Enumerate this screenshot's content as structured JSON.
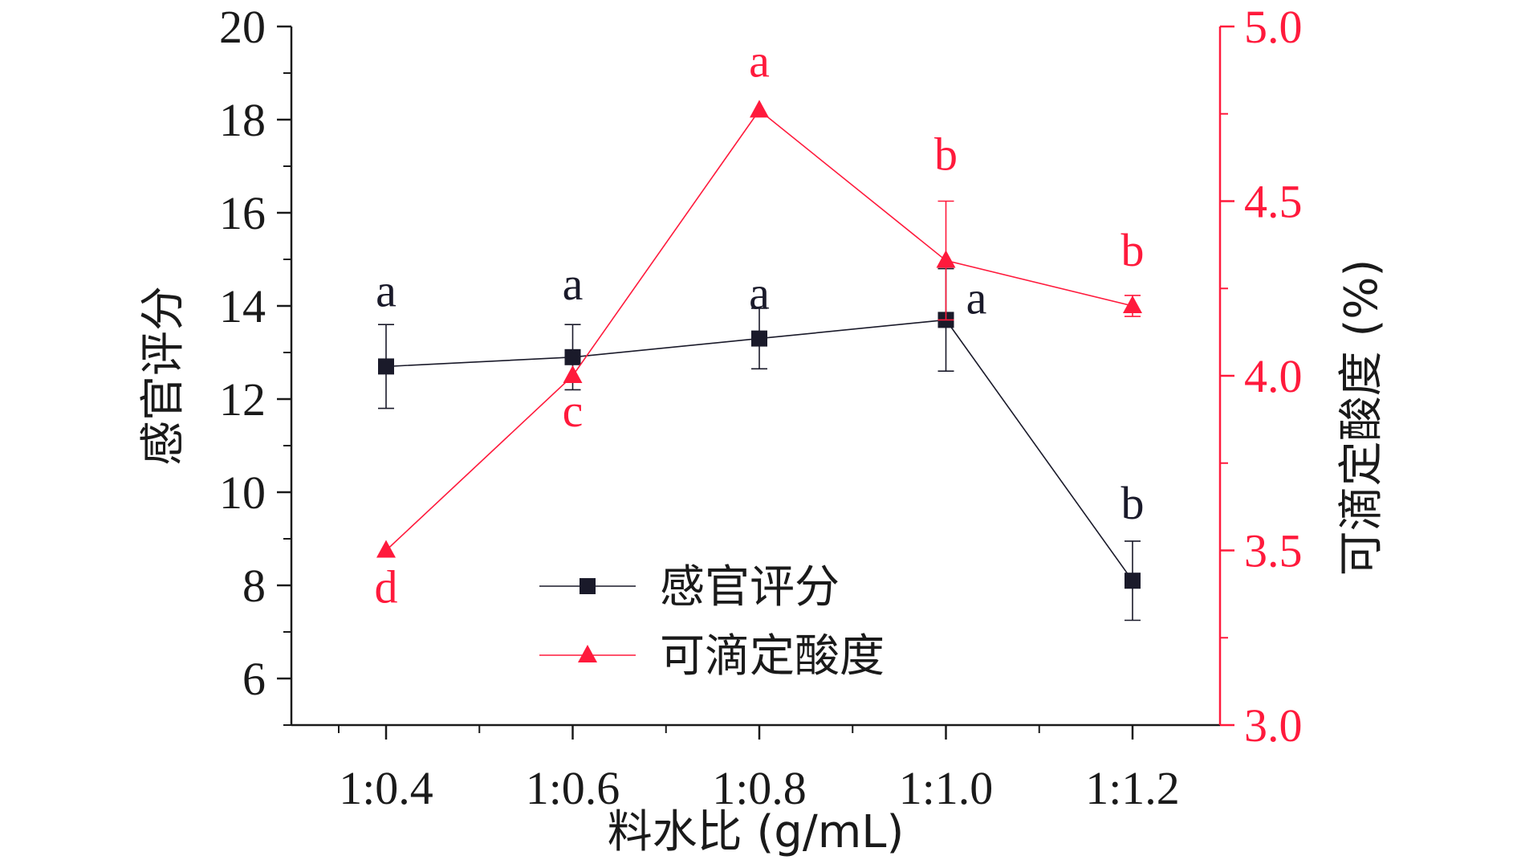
{
  "chart_data": {
    "type": "line",
    "xlabel": "料水比 (g/mL)",
    "categories": [
      "1:0.4",
      "1:0.6",
      "1:0.8",
      "1:1.0",
      "1:1.2"
    ],
    "y_left": {
      "label": "感官评分",
      "lim": [
        5,
        20
      ],
      "ticks": [
        6,
        8,
        10,
        12,
        14,
        16,
        18,
        20
      ],
      "tick_labels": [
        "6",
        "8",
        "10",
        "12",
        "14",
        "16",
        "18",
        "20"
      ]
    },
    "y_right": {
      "label": "可滴定酸度 (%)",
      "lim": [
        3.0,
        5.0
      ],
      "ticks": [
        3.0,
        3.5,
        4.0,
        4.5,
        5.0
      ],
      "tick_labels": [
        "3.0",
        "3.5",
        "4.0",
        "4.5",
        "5.0"
      ],
      "color": "#ff1a3c"
    },
    "series": [
      {
        "name": "感官评分",
        "axis": "left",
        "color": "#1a1a2a",
        "marker": "square",
        "values": [
          12.7,
          12.9,
          13.3,
          13.7,
          8.1
        ],
        "errors": [
          0.9,
          0.7,
          0.65,
          1.1,
          0.85
        ],
        "sig_labels": [
          "a",
          "a",
          "a",
          "a",
          "b"
        ]
      },
      {
        "name": "可滴定酸度",
        "axis": "right",
        "color": "#ff1a3c",
        "marker": "triangle",
        "values": [
          3.5,
          4.0,
          4.76,
          4.33,
          4.2
        ],
        "errors": [
          0.0,
          0.0,
          0.0,
          0.17,
          0.03
        ],
        "sig_labels": [
          "d",
          "c",
          "a",
          "b",
          "b"
        ]
      }
    ],
    "legend_position": "lower-center",
    "grid": false
  }
}
